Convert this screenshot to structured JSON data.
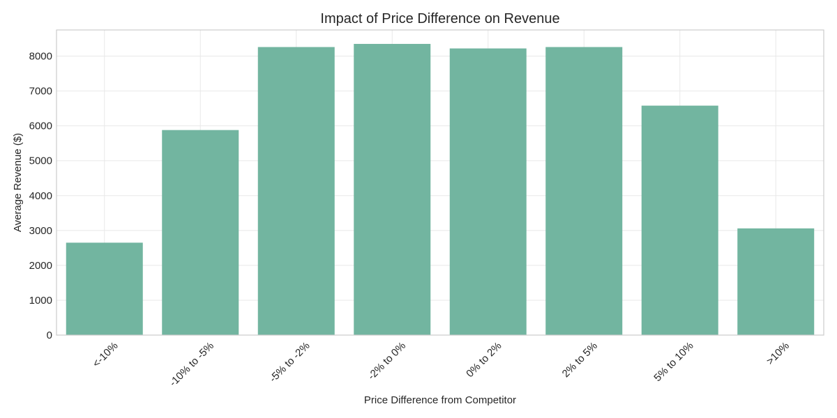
{
  "chart_data": {
    "type": "bar",
    "title": "Impact of Price Difference on Revenue",
    "xlabel": "Price Difference from Competitor",
    "ylabel": "Average Revenue ($)",
    "categories": [
      "<-10%",
      "-10% to -5%",
      "-5% to -2%",
      "-2% to 0%",
      "0% to 2%",
      "2% to 5%",
      "5% to 10%",
      ">10%"
    ],
    "values": [
      2650,
      5880,
      8260,
      8350,
      8220,
      8260,
      6580,
      3060
    ],
    "ylim": [
      0,
      8750
    ],
    "yticks": [
      0,
      1000,
      2000,
      3000,
      4000,
      5000,
      6000,
      7000,
      8000
    ],
    "grid": true,
    "bar_color": "#72b5a0"
  }
}
